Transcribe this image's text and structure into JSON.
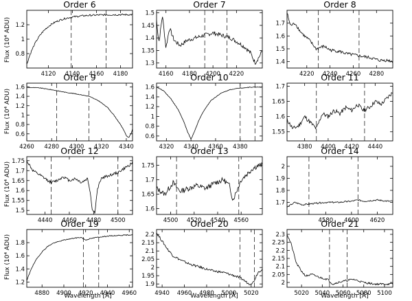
{
  "figure": {
    "ylabel": "Flux (10⁴ ADU)",
    "xlabel": "Wavelength [Å]"
  },
  "chart_data": [
    {
      "type": "line",
      "title": "Order 6",
      "xlim": [
        4102,
        4190
      ],
      "ylim": [
        0.6,
        1.4
      ],
      "xticks": [
        4120,
        4140,
        4160,
        4180
      ],
      "yticks": [
        0.8,
        1.0,
        1.2
      ],
      "markers": [
        4139,
        4168
      ],
      "shape": "rise",
      "ystart": 0.65,
      "yend": 1.34,
      "noise": 0.012,
      "seed": 6
    },
    {
      "type": "line",
      "title": "Order 7",
      "xlim": [
        4152,
        4242
      ],
      "ylim": [
        1.28,
        1.51
      ],
      "xticks": [
        4160,
        4180,
        4200,
        4220
      ],
      "yticks": [
        1.3,
        1.35,
        1.4,
        1.45,
        1.5
      ],
      "markers": [
        4193,
        4212
      ],
      "points": [
        [
          4152,
          1.47
        ],
        [
          4154,
          1.38
        ],
        [
          4157,
          1.49
        ],
        [
          4160,
          1.36
        ],
        [
          4163,
          1.44
        ],
        [
          4167,
          1.39
        ],
        [
          4172,
          1.37
        ],
        [
          4178,
          1.39
        ],
        [
          4185,
          1.4
        ],
        [
          4192,
          1.41
        ],
        [
          4200,
          1.42
        ],
        [
          4208,
          1.41
        ],
        [
          4215,
          1.4
        ],
        [
          4222,
          1.38
        ],
        [
          4228,
          1.36
        ],
        [
          4232,
          1.34
        ],
        [
          4236,
          1.3
        ],
        [
          4240,
          1.33
        ],
        [
          4242,
          1.35
        ]
      ],
      "noise": 0.008,
      "seed": 7
    },
    {
      "type": "line",
      "title": "Order 8",
      "xlim": [
        4203,
        4294
      ],
      "ylim": [
        1.35,
        1.8
      ],
      "xticks": [
        4220,
        4240,
        4260,
        4280
      ],
      "yticks": [
        1.4,
        1.5,
        1.6,
        1.7
      ],
      "markers": [
        4230,
        4265
      ],
      "points": [
        [
          4203,
          1.78
        ],
        [
          4206,
          1.68
        ],
        [
          4210,
          1.7
        ],
        [
          4214,
          1.64
        ],
        [
          4218,
          1.6
        ],
        [
          4222,
          1.57
        ],
        [
          4228,
          1.5
        ],
        [
          4235,
          1.52
        ],
        [
          4240,
          1.49
        ],
        [
          4248,
          1.48
        ],
        [
          4255,
          1.46
        ],
        [
          4262,
          1.45
        ],
        [
          4268,
          1.44
        ],
        [
          4275,
          1.43
        ],
        [
          4282,
          1.41
        ],
        [
          4290,
          1.41
        ],
        [
          4294,
          1.4
        ]
      ],
      "noise": 0.012,
      "seed": 8
    },
    {
      "type": "line",
      "title": "Order 9",
      "xlim": [
        4260,
        4345
      ],
      "ylim": [
        0.45,
        1.68
      ],
      "xticks": [
        4260,
        4280,
        4300,
        4320,
        4340
      ],
      "yticks": [
        0.6,
        0.8,
        1.0,
        1.2,
        1.4,
        1.6
      ],
      "markers": [
        4284,
        4310
      ],
      "points": [
        [
          4260,
          1.59
        ],
        [
          4270,
          1.58
        ],
        [
          4280,
          1.54
        ],
        [
          4290,
          1.49
        ],
        [
          4300,
          1.45
        ],
        [
          4310,
          1.4
        ],
        [
          4318,
          1.3
        ],
        [
          4325,
          1.16
        ],
        [
          4330,
          1.0
        ],
        [
          4334,
          0.85
        ],
        [
          4338,
          0.68
        ],
        [
          4340,
          0.56
        ],
        [
          4342,
          0.52
        ],
        [
          4344,
          0.62
        ],
        [
          4345,
          0.7
        ]
      ],
      "noise": 0.006,
      "seed": 9
    },
    {
      "type": "line",
      "title": "Order 10",
      "xlim": [
        4312,
        4398
      ],
      "ylim": [
        0.5,
        1.68
      ],
      "xticks": [
        4320,
        4340,
        4360,
        4380
      ],
      "yticks": [
        0.6,
        0.8,
        1.0,
        1.2,
        1.4,
        1.6
      ],
      "markers": [
        4380,
        4392
      ],
      "points": [
        [
          4312,
          1.6
        ],
        [
          4318,
          1.52
        ],
        [
          4324,
          1.35
        ],
        [
          4330,
          1.12
        ],
        [
          4334,
          0.9
        ],
        [
          4337,
          0.7
        ],
        [
          4340,
          0.53
        ],
        [
          4343,
          0.7
        ],
        [
          4346,
          0.9
        ],
        [
          4350,
          1.1
        ],
        [
          4356,
          1.32
        ],
        [
          4364,
          1.47
        ],
        [
          4372,
          1.55
        ],
        [
          4380,
          1.58
        ],
        [
          4390,
          1.6
        ],
        [
          4398,
          1.6
        ]
      ],
      "noise": 0.006,
      "seed": 10
    },
    {
      "type": "line",
      "title": "Order 11",
      "xlim": [
        4365,
        4455
      ],
      "ylim": [
        1.52,
        1.71
      ],
      "xticks": [
        4380,
        4400,
        4420,
        4440
      ],
      "yticks": [
        1.55,
        1.6,
        1.65,
        1.7
      ],
      "markers": [
        4390,
        4431
      ],
      "points": [
        [
          4365,
          1.59
        ],
        [
          4370,
          1.56
        ],
        [
          4375,
          1.57
        ],
        [
          4380,
          1.6
        ],
        [
          4385,
          1.58
        ],
        [
          4390,
          1.56
        ],
        [
          4395,
          1.61
        ],
        [
          4400,
          1.6
        ],
        [
          4405,
          1.62
        ],
        [
          4410,
          1.61
        ],
        [
          4415,
          1.63
        ],
        [
          4420,
          1.62
        ],
        [
          4425,
          1.64
        ],
        [
          4430,
          1.62
        ],
        [
          4435,
          1.63
        ],
        [
          4440,
          1.65
        ],
        [
          4445,
          1.64
        ],
        [
          4450,
          1.66
        ],
        [
          4455,
          1.68
        ]
      ],
      "noise": 0.007,
      "seed": 11
    },
    {
      "type": "line",
      "title": "Order 12",
      "xlim": [
        4425,
        4512
      ],
      "ylim": [
        1.48,
        1.77
      ],
      "xticks": [
        4440,
        4460,
        4480,
        4500
      ],
      "yticks": [
        1.5,
        1.55,
        1.6,
        1.65,
        1.7,
        1.75
      ],
      "markers": [
        4445,
        4500
      ],
      "points": [
        [
          4425,
          1.75
        ],
        [
          4430,
          1.7
        ],
        [
          4435,
          1.68
        ],
        [
          4440,
          1.66
        ],
        [
          4445,
          1.64
        ],
        [
          4450,
          1.65
        ],
        [
          4455,
          1.67
        ],
        [
          4460,
          1.65
        ],
        [
          4465,
          1.66
        ],
        [
          4470,
          1.64
        ],
        [
          4475,
          1.66
        ],
        [
          4477,
          1.6
        ],
        [
          4479,
          1.5
        ],
        [
          4481,
          1.49
        ],
        [
          4483,
          1.6
        ],
        [
          4486,
          1.66
        ],
        [
          4490,
          1.67
        ],
        [
          4495,
          1.68
        ],
        [
          4500,
          1.69
        ],
        [
          4505,
          1.71
        ],
        [
          4510,
          1.73
        ],
        [
          4512,
          1.74
        ]
      ],
      "noise": 0.007,
      "seed": 12
    },
    {
      "type": "line",
      "title": "Order 13",
      "xlim": [
        4488,
        4578
      ],
      "ylim": [
        1.58,
        1.78
      ],
      "xticks": [
        4500,
        4520,
        4540,
        4560
      ],
      "yticks": [
        1.6,
        1.65,
        1.7,
        1.75
      ],
      "markers": [
        4505,
        4558
      ],
      "points": [
        [
          4488,
          1.67
        ],
        [
          4495,
          1.65
        ],
        [
          4502,
          1.69
        ],
        [
          4508,
          1.66
        ],
        [
          4515,
          1.67
        ],
        [
          4522,
          1.68
        ],
        [
          4530,
          1.67
        ],
        [
          4538,
          1.69
        ],
        [
          4545,
          1.7
        ],
        [
          4550,
          1.68
        ],
        [
          4553,
          1.63
        ],
        [
          4555,
          1.65
        ],
        [
          4560,
          1.7
        ],
        [
          4565,
          1.72
        ],
        [
          4570,
          1.74
        ],
        [
          4575,
          1.75
        ],
        [
          4578,
          1.75
        ]
      ],
      "noise": 0.009,
      "seed": 13
    },
    {
      "type": "line",
      "title": "Order 14",
      "xlim": [
        4550,
        4632
      ],
      "ylim": [
        1.6,
        2.08
      ],
      "xticks": [
        4580,
        4600,
        4620
      ],
      "yticks": [
        1.7,
        1.8,
        1.9,
        2.0
      ],
      "markers": [
        4567,
        4605
      ],
      "points": [
        [
          4550,
          1.66
        ],
        [
          4556,
          1.7
        ],
        [
          4562,
          1.68
        ],
        [
          4570,
          1.69
        ],
        [
          4580,
          1.7
        ],
        [
          4590,
          1.7
        ],
        [
          4600,
          1.71
        ],
        [
          4605,
          1.72
        ],
        [
          4610,
          1.71
        ],
        [
          4620,
          1.72
        ],
        [
          4628,
          1.71
        ],
        [
          4632,
          1.71
        ]
      ],
      "noise": 0.006,
      "seed": 14
    },
    {
      "type": "line",
      "title": "Order 19",
      "xlim": [
        4866,
        4963
      ],
      "ylim": [
        1.12,
        2.0
      ],
      "xticks": [
        4880,
        4900,
        4920,
        4940,
        4960
      ],
      "yticks": [
        1.2,
        1.4,
        1.6,
        1.8
      ],
      "markers": [
        4918,
        4932
      ],
      "points": [
        [
          4866,
          1.22
        ],
        [
          4870,
          1.4
        ],
        [
          4875,
          1.55
        ],
        [
          4880,
          1.66
        ],
        [
          4885,
          1.74
        ],
        [
          4890,
          1.79
        ],
        [
          4900,
          1.84
        ],
        [
          4910,
          1.87
        ],
        [
          4916,
          1.88
        ],
        [
          4920,
          1.84
        ],
        [
          4924,
          1.86
        ],
        [
          4930,
          1.88
        ],
        [
          4940,
          1.9
        ],
        [
          4950,
          1.91
        ],
        [
          4963,
          1.92
        ]
      ],
      "noise": 0.006,
      "seed": 19
    },
    {
      "type": "line",
      "title": "Order 20",
      "xlim": [
        4935,
        5030
      ],
      "ylim": [
        1.88,
        2.23
      ],
      "xticks": [
        4940,
        4960,
        4980,
        5000,
        5020
      ],
      "yticks": [
        1.9,
        1.95,
        2.0,
        2.05,
        2.1,
        2.15,
        2.2
      ],
      "markers": [
        5010,
        5023
      ],
      "points": [
        [
          4935,
          2.21
        ],
        [
          4940,
          2.16
        ],
        [
          4945,
          2.11
        ],
        [
          4950,
          2.07
        ],
        [
          4958,
          2.04
        ],
        [
          4965,
          2.02
        ],
        [
          4975,
          2.0
        ],
        [
          4985,
          1.98
        ],
        [
          4995,
          1.97
        ],
        [
          5005,
          1.95
        ],
        [
          5012,
          1.93
        ],
        [
          5018,
          1.9
        ],
        [
          5022,
          1.91
        ],
        [
          5026,
          1.97
        ],
        [
          5030,
          1.99
        ]
      ],
      "noise": 0.007,
      "seed": 20
    },
    {
      "type": "line",
      "title": "Order 21",
      "xlim": [
        5006,
        5108
      ],
      "ylim": [
        1.97,
        2.33
      ],
      "xticks": [
        5020,
        5040,
        5060,
        5080,
        5100
      ],
      "yticks": [
        2.0,
        2.05,
        2.1,
        2.15,
        2.2,
        2.25,
        2.3
      ],
      "markers": [
        5047,
        5064
      ],
      "points": [
        [
          5006,
          2.3
        ],
        [
          5010,
          2.24
        ],
        [
          5015,
          2.12
        ],
        [
          5020,
          2.07
        ],
        [
          5024,
          2.04
        ],
        [
          5030,
          2.05
        ],
        [
          5038,
          2.03
        ],
        [
          5045,
          2.02
        ],
        [
          5050,
          1.99
        ],
        [
          5055,
          2.0
        ],
        [
          5062,
          2.01
        ],
        [
          5070,
          2.02
        ],
        [
          5080,
          2.0
        ],
        [
          5090,
          1.99
        ],
        [
          5100,
          1.99
        ],
        [
          5108,
          1.99
        ]
      ],
      "noise": 0.006,
      "seed": 21
    }
  ]
}
